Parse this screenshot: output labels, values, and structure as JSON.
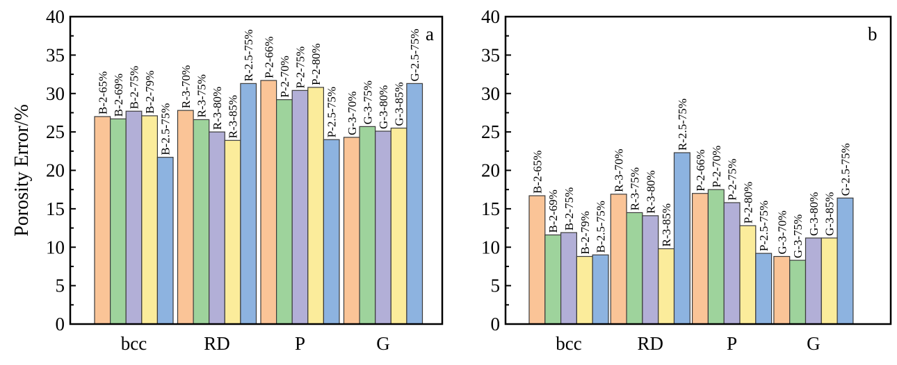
{
  "chart_data": [
    {
      "type": "bar",
      "panel": "a",
      "title": "",
      "xlabel": "",
      "ylabel": "Porosity Error/%",
      "ylim": [
        0,
        40
      ],
      "yticks": [
        0,
        5,
        10,
        15,
        20,
        25,
        30,
        35,
        40
      ],
      "grid": false,
      "categories": [
        "bcc",
        "RD",
        "P",
        "G"
      ],
      "series_colors": [
        "#FAC497",
        "#9ED39C",
        "#B2AFD7",
        "#FBEC9B",
        "#8DB3E0"
      ],
      "groups": [
        {
          "category": "bcc",
          "labels": [
            "B-2-65%",
            "B-2-69%",
            "B-2-75%",
            "B-2-79%",
            "B-2.5-75%"
          ],
          "values": [
            27.0,
            26.7,
            27.7,
            27.1,
            21.7
          ]
        },
        {
          "category": "RD",
          "labels": [
            "R-3-70%",
            "R-3-75%",
            "R-3-80%",
            "R-3-85%",
            "R-2.5-75%"
          ],
          "values": [
            27.8,
            26.6,
            25.0,
            23.9,
            31.3
          ]
        },
        {
          "category": "P",
          "labels": [
            "P-2-66%",
            "P-2-70%",
            "P-2-75%",
            "P-2-80%",
            "P-2.5-75%"
          ],
          "values": [
            31.7,
            29.2,
            30.4,
            30.8,
            24.0
          ]
        },
        {
          "category": "G",
          "labels": [
            "G-3-70%",
            "G-3-75%",
            "G-3-80%",
            "G-3-85%",
            "G-2.5-75%"
          ],
          "values": [
            24.3,
            25.7,
            25.1,
            25.5,
            31.3
          ]
        }
      ]
    },
    {
      "type": "bar",
      "panel": "b",
      "title": "",
      "xlabel": "",
      "ylabel": "",
      "ylim": [
        0,
        40
      ],
      "yticks": [
        0,
        5,
        10,
        15,
        20,
        25,
        30,
        35,
        40
      ],
      "grid": false,
      "categories": [
        "bcc",
        "RD",
        "P",
        "G"
      ],
      "series_colors": [
        "#FAC497",
        "#9ED39C",
        "#B2AFD7",
        "#FBEC9B",
        "#8DB3E0"
      ],
      "groups": [
        {
          "category": "bcc",
          "labels": [
            "B-2-65%",
            "B-2-69%",
            "B-2-75%",
            "B-2-79%",
            "B-2.5-75%"
          ],
          "values": [
            16.7,
            11.6,
            11.9,
            8.8,
            9.0
          ]
        },
        {
          "category": "RD",
          "labels": [
            "R-3-70%",
            "R-3-75%",
            "R-3-80%",
            "R-3-85%",
            "R-2.5-75%"
          ],
          "values": [
            16.9,
            14.5,
            14.1,
            9.8,
            22.3
          ]
        },
        {
          "category": "P",
          "labels": [
            "P-2-66%",
            "P-2-70%",
            "P-2-75%",
            "P-2-80%",
            "P-2.5-75%"
          ],
          "values": [
            17.0,
            17.5,
            15.8,
            12.8,
            9.2
          ]
        },
        {
          "category": "G",
          "labels": [
            "G-3-70%",
            "G-3-75%",
            "G-3-80%",
            "G-3-85%",
            "G-2.5-75%"
          ],
          "values": [
            8.8,
            8.3,
            11.2,
            11.2,
            16.4
          ]
        }
      ]
    }
  ]
}
